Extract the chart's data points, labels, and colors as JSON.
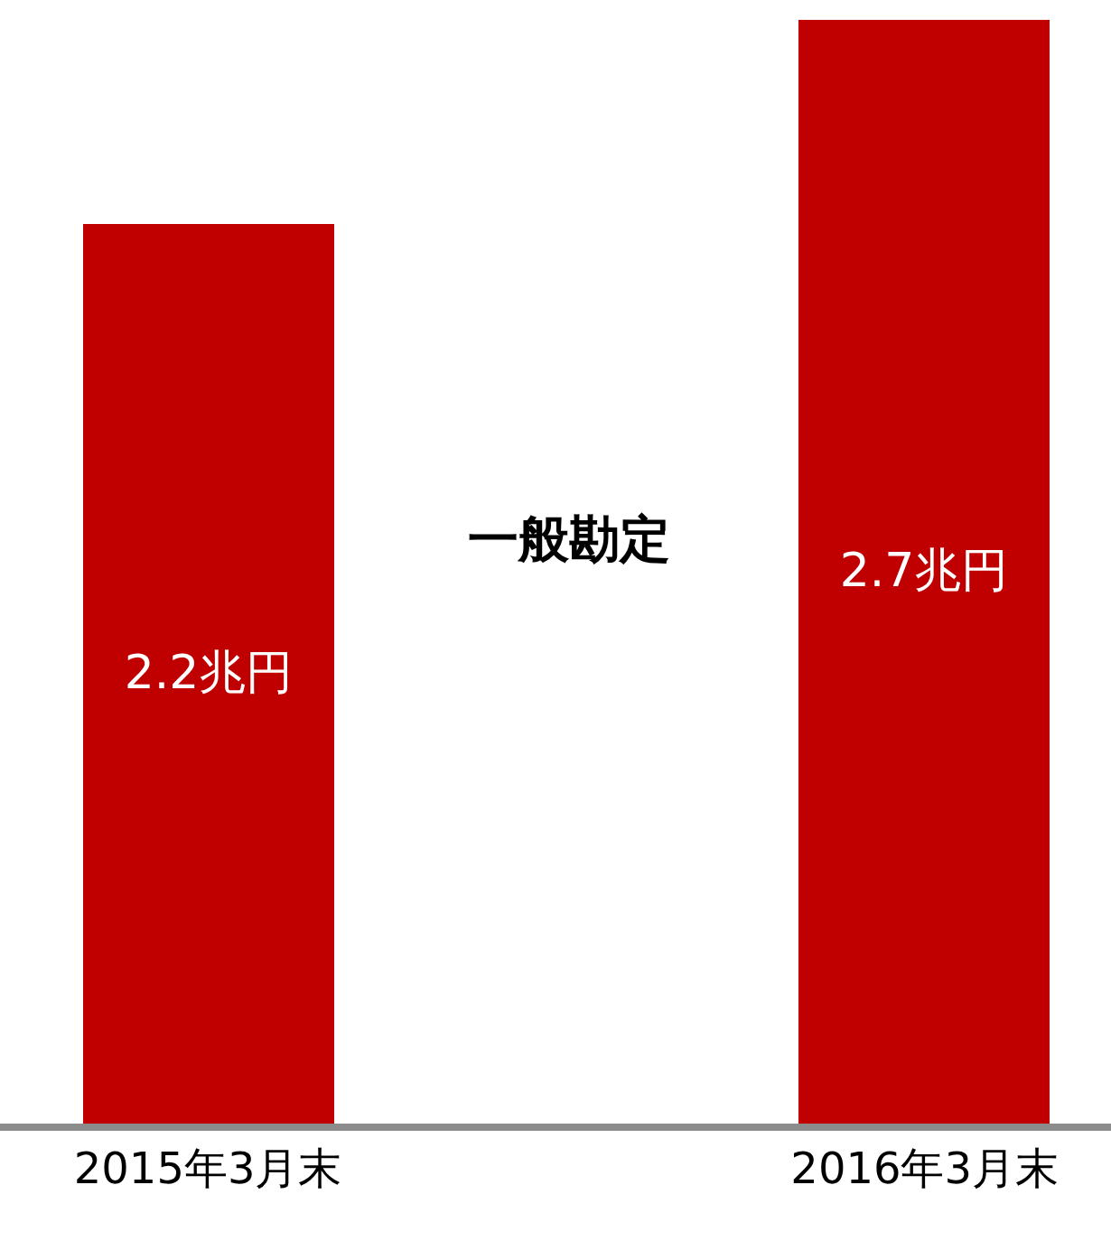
{
  "chart_data": {
    "type": "bar",
    "categories": [
      "2015年3月末",
      "2016年3月末"
    ],
    "values": [
      2.2,
      2.7
    ],
    "value_labels": [
      "2.2兆円",
      "2.7兆円"
    ],
    "color": "#c00000",
    "ylim": [
      0,
      2.75
    ],
    "tick_labels": "x",
    "legend": false,
    "annotations": [
      "一般勘定"
    ]
  }
}
